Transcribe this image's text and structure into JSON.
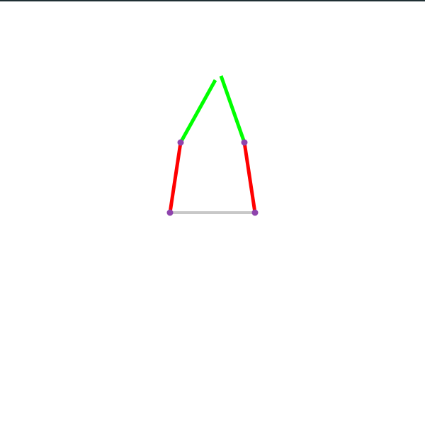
{
  "colors": {
    "background": "#ffffff",
    "top_border": "#1f2f33",
    "base_link": "#c8c8c8",
    "lower_links": "#ff0000",
    "upper_links": "#00ff00",
    "joints": "#8e44ad"
  },
  "diagram": {
    "type": "two-finger-linkage",
    "segments": [
      {
        "id": "base-link",
        "color_key": "base_link"
      },
      {
        "id": "left-lower-link",
        "color_key": "lower_links"
      },
      {
        "id": "right-lower-link",
        "color_key": "lower_links"
      },
      {
        "id": "left-upper-link",
        "color_key": "upper_links"
      },
      {
        "id": "right-upper-link",
        "color_key": "upper_links"
      }
    ],
    "joints": [
      {
        "id": "left-base-joint"
      },
      {
        "id": "right-base-joint"
      },
      {
        "id": "left-middle-joint"
      },
      {
        "id": "right-middle-joint"
      }
    ]
  }
}
